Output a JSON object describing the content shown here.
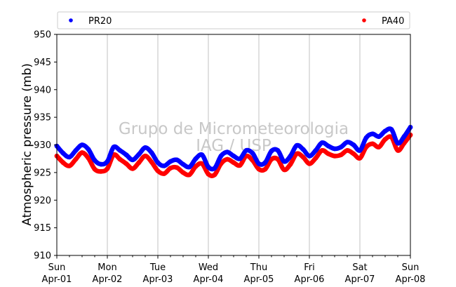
{
  "chart_data": {
    "type": "scatter",
    "title": "",
    "xlabel": "",
    "ylabel": "Atmospheric pressure (mb)",
    "ylim": [
      910,
      950
    ],
    "yticks": [
      910,
      915,
      920,
      925,
      930,
      935,
      940,
      945,
      950
    ],
    "x_range": [
      "2018-04-01 00:00",
      "2018-04-08 00:00"
    ],
    "x_tick_labels": [
      {
        "day": "Sun",
        "date": "Apr-01"
      },
      {
        "day": "Mon",
        "date": "Apr-02"
      },
      {
        "day": "Tue",
        "date": "Apr-03"
      },
      {
        "day": "Wed",
        "date": "Apr-04"
      },
      {
        "day": "Thu",
        "date": "Apr-05"
      },
      {
        "day": "Fri",
        "date": "Apr-06"
      },
      {
        "day": "Sat",
        "date": "Apr-07"
      },
      {
        "day": "Sun",
        "date": "Apr-08"
      }
    ],
    "grid": "vertical",
    "legend": "top",
    "series": [
      {
        "name": "PR20",
        "color": "#0000ff",
        "points": [
          [
            "2018-04-01 00:00",
            929.8
          ],
          [
            "2018-04-01 03:00",
            928.5
          ],
          [
            "2018-04-01 06:00",
            927.8
          ],
          [
            "2018-04-01 09:00",
            929.0
          ],
          [
            "2018-04-01 12:00",
            930.0
          ],
          [
            "2018-04-01 15:00",
            929.2
          ],
          [
            "2018-04-01 18:00",
            927.2
          ],
          [
            "2018-04-01 21:00",
            926.5
          ],
          [
            "2018-04-02 00:00",
            927.0
          ],
          [
            "2018-04-02 03:00",
            929.6
          ],
          [
            "2018-04-02 06:00",
            929.0
          ],
          [
            "2018-04-02 09:00",
            928.2
          ],
          [
            "2018-04-02 12:00",
            927.3
          ],
          [
            "2018-04-02 15:00",
            928.3
          ],
          [
            "2018-04-02 18:00",
            929.5
          ],
          [
            "2018-04-02 21:00",
            928.6
          ],
          [
            "2018-04-03 00:00",
            926.8
          ],
          [
            "2018-04-03 03:00",
            926.2
          ],
          [
            "2018-04-03 06:00",
            927.0
          ],
          [
            "2018-04-03 09:00",
            927.3
          ],
          [
            "2018-04-03 12:00",
            926.5
          ],
          [
            "2018-04-03 15:00",
            926.0
          ],
          [
            "2018-04-03 18:00",
            927.5
          ],
          [
            "2018-04-03 21:00",
            928.2
          ],
          [
            "2018-04-04 00:00",
            926.0
          ],
          [
            "2018-04-04 03:00",
            925.8
          ],
          [
            "2018-04-04 06:00",
            928.0
          ],
          [
            "2018-04-04 09:00",
            928.7
          ],
          [
            "2018-04-04 12:00",
            928.0
          ],
          [
            "2018-04-04 15:00",
            927.5
          ],
          [
            "2018-04-04 18:00",
            929.0
          ],
          [
            "2018-04-04 21:00",
            928.5
          ],
          [
            "2018-04-05 00:00",
            926.6
          ],
          [
            "2018-04-05 03:00",
            926.8
          ],
          [
            "2018-04-05 06:00",
            928.9
          ],
          [
            "2018-04-05 09:00",
            929.0
          ],
          [
            "2018-04-05 12:00",
            927.0
          ],
          [
            "2018-04-05 15:00",
            928.0
          ],
          [
            "2018-04-05 18:00",
            929.9
          ],
          [
            "2018-04-05 21:00",
            929.2
          ],
          [
            "2018-04-06 00:00",
            928.0
          ],
          [
            "2018-04-06 03:00",
            929.0
          ],
          [
            "2018-04-06 06:00",
            930.4
          ],
          [
            "2018-04-06 09:00",
            929.8
          ],
          [
            "2018-04-06 12:00",
            929.3
          ],
          [
            "2018-04-06 15:00",
            929.6
          ],
          [
            "2018-04-06 18:00",
            930.5
          ],
          [
            "2018-04-06 21:00",
            930.0
          ],
          [
            "2018-04-07 00:00",
            929.0
          ],
          [
            "2018-04-07 03:00",
            931.3
          ],
          [
            "2018-04-07 06:00",
            932.0
          ],
          [
            "2018-04-07 09:00",
            931.5
          ],
          [
            "2018-04-07 12:00",
            932.5
          ],
          [
            "2018-04-07 15:00",
            932.8
          ],
          [
            "2018-04-07 18:00",
            930.3
          ],
          [
            "2018-04-07 21:00",
            931.5
          ],
          [
            "2018-04-08 00:00",
            933.2
          ]
        ]
      },
      {
        "name": "PA40",
        "color": "#ff0000",
        "points": [
          [
            "2018-04-01 00:00",
            928.0
          ],
          [
            "2018-04-01 03:00",
            926.8
          ],
          [
            "2018-04-01 06:00",
            926.2
          ],
          [
            "2018-04-01 09:00",
            927.4
          ],
          [
            "2018-04-01 12:00",
            928.6
          ],
          [
            "2018-04-01 15:00",
            927.6
          ],
          [
            "2018-04-01 18:00",
            925.6
          ],
          [
            "2018-04-01 21:00",
            925.2
          ],
          [
            "2018-04-02 00:00",
            925.7
          ],
          [
            "2018-04-02 03:00",
            928.2
          ],
          [
            "2018-04-02 06:00",
            927.4
          ],
          [
            "2018-04-02 09:00",
            926.6
          ],
          [
            "2018-04-02 12:00",
            925.7
          ],
          [
            "2018-04-02 15:00",
            926.8
          ],
          [
            "2018-04-02 18:00",
            928.0
          ],
          [
            "2018-04-02 21:00",
            926.9
          ],
          [
            "2018-04-03 00:00",
            925.3
          ],
          [
            "2018-04-03 03:00",
            924.8
          ],
          [
            "2018-04-03 06:00",
            925.8
          ],
          [
            "2018-04-03 09:00",
            925.9
          ],
          [
            "2018-04-03 12:00",
            925.0
          ],
          [
            "2018-04-03 15:00",
            924.6
          ],
          [
            "2018-04-03 18:00",
            926.1
          ],
          [
            "2018-04-03 21:00",
            926.6
          ],
          [
            "2018-04-04 00:00",
            924.7
          ],
          [
            "2018-04-04 03:00",
            924.6
          ],
          [
            "2018-04-04 06:00",
            926.6
          ],
          [
            "2018-04-04 09:00",
            927.4
          ],
          [
            "2018-04-04 12:00",
            926.8
          ],
          [
            "2018-04-04 15:00",
            926.3
          ],
          [
            "2018-04-04 18:00",
            928.0
          ],
          [
            "2018-04-04 21:00",
            927.2
          ],
          [
            "2018-04-05 00:00",
            925.6
          ],
          [
            "2018-04-05 03:00",
            925.6
          ],
          [
            "2018-04-05 06:00",
            927.4
          ],
          [
            "2018-04-05 09:00",
            927.4
          ],
          [
            "2018-04-05 12:00",
            925.5
          ],
          [
            "2018-04-05 15:00",
            926.5
          ],
          [
            "2018-04-05 18:00",
            928.4
          ],
          [
            "2018-04-05 21:00",
            927.8
          ],
          [
            "2018-04-06 00:00",
            926.6
          ],
          [
            "2018-04-06 03:00",
            927.6
          ],
          [
            "2018-04-06 06:00",
            929.0
          ],
          [
            "2018-04-06 09:00",
            928.4
          ],
          [
            "2018-04-06 12:00",
            928.0
          ],
          [
            "2018-04-06 15:00",
            928.2
          ],
          [
            "2018-04-06 18:00",
            929.0
          ],
          [
            "2018-04-06 21:00",
            928.4
          ],
          [
            "2018-04-07 00:00",
            927.6
          ],
          [
            "2018-04-07 03:00",
            929.6
          ],
          [
            "2018-04-07 06:00",
            930.2
          ],
          [
            "2018-04-07 09:00",
            929.6
          ],
          [
            "2018-04-07 12:00",
            931.0
          ],
          [
            "2018-04-07 15:00",
            931.4
          ],
          [
            "2018-04-07 18:00",
            929.0
          ],
          [
            "2018-04-07 21:00",
            930.3
          ],
          [
            "2018-04-08 00:00",
            931.8
          ]
        ]
      }
    ]
  },
  "watermark": {
    "line1": "Grupo de Micrometeorologia",
    "line2": "IAG / USP"
  }
}
